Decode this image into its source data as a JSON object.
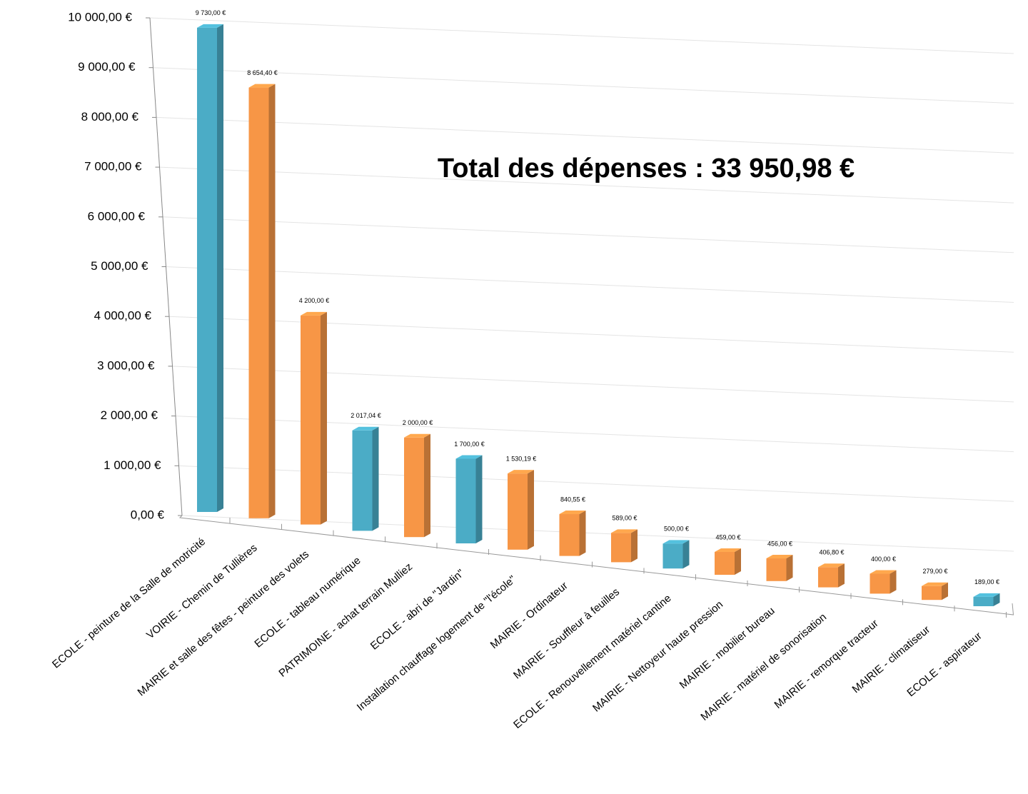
{
  "chart_data": {
    "type": "bar3d",
    "annotation": "Total des dépenses : 33 950,98 €",
    "categories": [
      "ECOLE - peinture de la Salle de motricité",
      "VOIRIE - Chemin de Tullières",
      "MAIRIE et salle des fêtes - peinture des volets",
      "ECOLE - tableau numérique",
      "PATRIMOINE - achat terrain Mulliez",
      "ECOLE - abri de \"Jardin\"",
      "Installation chauffage logement de \"l'école\"",
      "MAIRIE - Ordinateur",
      "MAIRIE - Souffleur à feuilles",
      "ECOLE - Renouvellement matériel cantine",
      "MAIRIE - Nettoyeur haute pression",
      "MAIRIE - mobilier bureau",
      "MAIRIE - matériel de sonorisation",
      "MAIRIE - remorque tracteur",
      "MAIRIE - climatiseur",
      "ECOLE - aspirateur"
    ],
    "values": [
      9730,
      8654.4,
      4200,
      2017.04,
      2000,
      1700,
      1530.19,
      840.55,
      589,
      500,
      459,
      456,
      406.8,
      400,
      279,
      189
    ],
    "value_labels": [
      "9 730,00 €",
      "8 654,40 €",
      "4 200,00 €",
      "2 017,04 €",
      "2 000,00 €",
      "1 700,00 €",
      "1 530,19 €",
      "840,55 €",
      "589,00 €",
      "500,00 €",
      "459,00 €",
      "456,00 €",
      "406,80 €",
      "400,00 €",
      "279,00 €",
      "189,00 €"
    ],
    "colors": [
      "#4bacc6",
      "#f79646",
      "#f79646",
      "#4bacc6",
      "#f79646",
      "#4bacc6",
      "#f79646",
      "#f79646",
      "#f79646",
      "#4bacc6",
      "#f79646",
      "#f79646",
      "#f79646",
      "#f79646",
      "#f79646",
      "#4bacc6"
    ],
    "ylim": [
      0,
      10000
    ],
    "yticks": [
      {
        "value": 0,
        "label": "0,00 €"
      },
      {
        "value": 1000,
        "label": "1 000,00 €"
      },
      {
        "value": 2000,
        "label": "2 000,00 €"
      },
      {
        "value": 3000,
        "label": "3 000,00 €"
      },
      {
        "value": 4000,
        "label": "4 000,00 €"
      },
      {
        "value": 5000,
        "label": "5 000,00 €"
      },
      {
        "value": 6000,
        "label": "6 000,00 €"
      },
      {
        "value": 7000,
        "label": "7 000,00 €"
      },
      {
        "value": 8000,
        "label": "8 000,00 €"
      },
      {
        "value": 9000,
        "label": "9 000,00 €"
      },
      {
        "value": 10000,
        "label": "10 000,00 €"
      }
    ],
    "grid": true
  }
}
